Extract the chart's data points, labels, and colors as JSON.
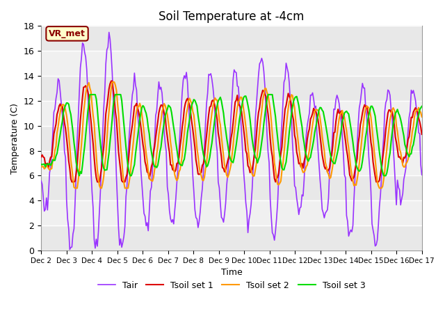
{
  "title": "Soil Temperature at -4cm",
  "xlabel": "Time",
  "ylabel": "Temperature (C)",
  "ylim": [
    0,
    18
  ],
  "annotation": "VR_met",
  "legend": [
    "Tair",
    "Tsoil set 1",
    "Tsoil set 2",
    "Tsoil set 3"
  ],
  "colors": {
    "Tair": "#9933ff",
    "Tsoil set 1": "#dd0000",
    "Tsoil set 2": "#ff9900",
    "Tsoil set 3": "#00dd00"
  },
  "xtick_labels": [
    "Dec 2",
    "Dec 3",
    "Dec 4",
    "Dec 5",
    "Dec 6",
    "Dec 7",
    "Dec 8",
    "Dec 9",
    "Dec 10",
    "Dec 11",
    "Dec 12",
    "Dec 13",
    "Dec 14",
    "Dec 15",
    "Dec 16",
    "Dec 17"
  ],
  "plot_bg_color": "#e8e8e8",
  "band_light_color": "#f0f0f0",
  "linewidth": 1.2,
  "title_fontsize": 12,
  "annotation_facecolor": "#ffffcc",
  "annotation_edgecolor": "#8B0000"
}
